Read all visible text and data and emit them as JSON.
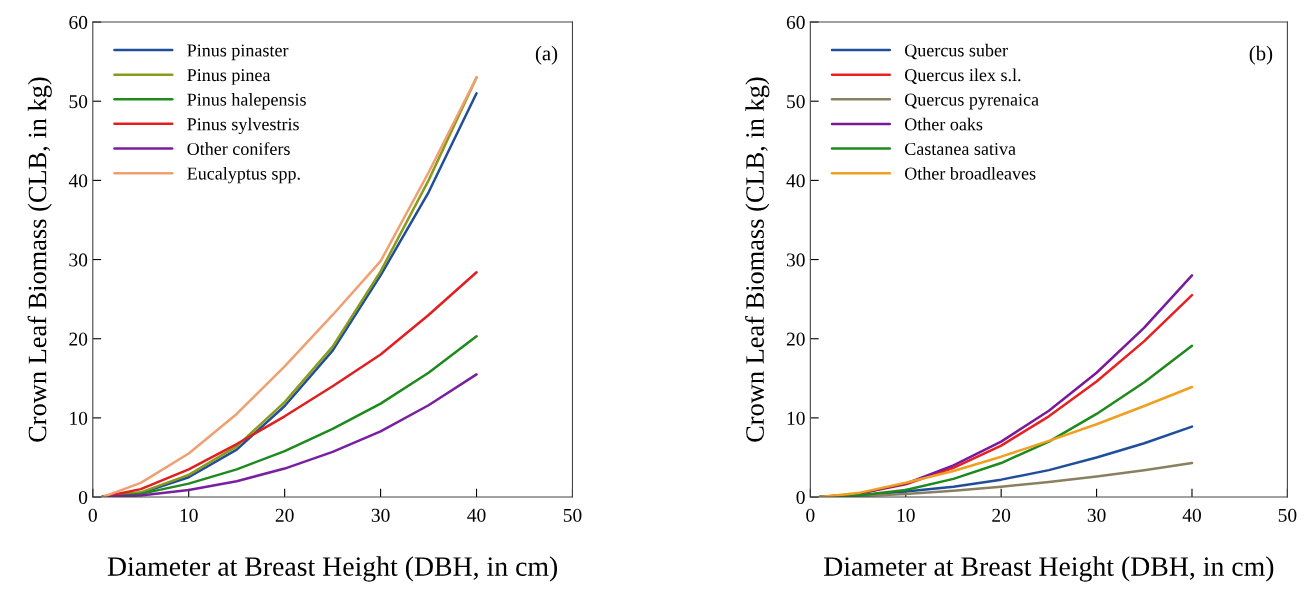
{
  "chart_data": [
    {
      "type": "line",
      "xlabel": "Diameter at Breast Height (DBH, in cm)",
      "ylabel": "Crown Leaf Biomass (CLB, in kg)",
      "annotations": [
        "(a)"
      ],
      "x": [
        1,
        5,
        10,
        15,
        20,
        25,
        30,
        35,
        40
      ],
      "xlim": [
        0,
        50
      ],
      "xticks": [
        0,
        10,
        20,
        30,
        40,
        50
      ],
      "ylim": [
        0,
        60
      ],
      "yticks": [
        0,
        10,
        20,
        30,
        40,
        50,
        60
      ],
      "legend": "top left",
      "grid": false,
      "series": [
        {
          "name": "Pinus pinaster",
          "color": "#1f4e9c",
          "values": [
            0,
            0.5,
            2.5,
            6,
            11.5,
            18.5,
            28,
            38.5,
            51
          ]
        },
        {
          "name": "Pinus pinea",
          "color": "#8a9a1a",
          "values": [
            0.1,
            0.6,
            2.8,
            6.4,
            12,
            19,
            28.5,
            40,
            53
          ]
        },
        {
          "name": "Pinus halepensis",
          "color": "#1e8a1e",
          "values": [
            0,
            0.4,
            1.7,
            3.5,
            5.8,
            8.6,
            11.8,
            15.7,
            20.3
          ]
        },
        {
          "name": "Pinus sylvestris",
          "color": "#e02020",
          "values": [
            0,
            1,
            3.5,
            6.7,
            10.2,
            14,
            18,
            23,
            28.4
          ]
        },
        {
          "name": "Other conifers",
          "color": "#7a1fa0",
          "values": [
            0,
            0.2,
            0.9,
            2,
            3.6,
            5.7,
            8.3,
            11.6,
            15.5
          ]
        },
        {
          "name": "Eucalyptus spp.",
          "color": "#f0a070",
          "values": [
            0,
            1.8,
            5.5,
            10.5,
            16.5,
            23,
            29.8,
            41,
            53
          ]
        }
      ]
    },
    {
      "type": "line",
      "xlabel": "Diameter at Breast Height (DBH, in cm)",
      "ylabel": "Crown Leaf Biomass (CLB, in kg)",
      "annotations": [
        "(b)"
      ],
      "x": [
        1,
        5,
        10,
        15,
        20,
        25,
        30,
        35,
        40
      ],
      "xlim": [
        0,
        50
      ],
      "xticks": [
        0,
        10,
        20,
        30,
        40,
        50
      ],
      "ylim": [
        0,
        60
      ],
      "yticks": [
        0,
        10,
        20,
        30,
        40,
        50,
        60
      ],
      "legend": "top left",
      "grid": false,
      "series": [
        {
          "name": "Quercus suber",
          "color": "#1f4e9c",
          "values": [
            0,
            0.2,
            0.7,
            1.3,
            2.2,
            3.4,
            5,
            6.8,
            8.9
          ]
        },
        {
          "name": "Quercus ilex s.l.",
          "color": "#e82020",
          "values": [
            0,
            0.4,
            1.6,
            3.7,
            6.5,
            10.2,
            14.6,
            19.7,
            25.5
          ]
        },
        {
          "name": "Quercus pyrenaica",
          "color": "#8a8060",
          "values": [
            0,
            0.1,
            0.4,
            0.8,
            1.3,
            1.9,
            2.6,
            3.4,
            4.3
          ]
        },
        {
          "name": "Other oaks",
          "color": "#7a1a9a",
          "values": [
            0,
            0.4,
            1.7,
            4,
            7,
            10.9,
            15.7,
            21.4,
            28
          ]
        },
        {
          "name": "Castanea sativa",
          "color": "#1e8a1e",
          "values": [
            0,
            0.2,
            0.9,
            2.3,
            4.3,
            7,
            10.5,
            14.5,
            19.1
          ]
        },
        {
          "name": "Other broadleaves",
          "color": "#f0a020",
          "values": [
            0,
            0.5,
            1.8,
            3.3,
            5.1,
            7.1,
            9.2,
            11.5,
            13.9
          ]
        }
      ]
    }
  ]
}
